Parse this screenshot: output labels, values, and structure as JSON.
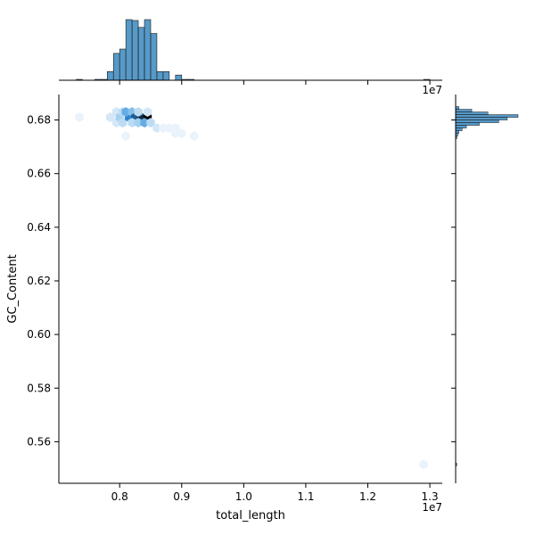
{
  "chart_data": {
    "type": "hexbin",
    "kind": "jointplot",
    "xlabel": "total_length",
    "ylabel": "GC_Content",
    "x_offset_label": "1e7",
    "x_scale_factor": 10000000,
    "xlim": [
      7.02,
      13.2
    ],
    "ylim": [
      0.5445,
      0.6895
    ],
    "x_ticks": [
      0.8,
      0.9,
      1.0,
      1.1,
      1.2,
      1.3
    ],
    "x_tick_labels": [
      "0.8",
      "0.9",
      "1.0",
      "1.1",
      "1.2",
      "1.3"
    ],
    "y_ticks": [
      0.56,
      0.58,
      0.6,
      0.62,
      0.64,
      0.66,
      0.68
    ],
    "y_tick_labels": [
      "0.56",
      "0.58",
      "0.60",
      "0.62",
      "0.64",
      "0.66",
      "0.68"
    ],
    "color": "#1f77b4",
    "hexbins": [
      {
        "x": 7.35,
        "y": 0.681,
        "count": 1
      },
      {
        "x": 7.85,
        "y": 0.681,
        "count": 2
      },
      {
        "x": 7.95,
        "y": 0.679,
        "count": 2
      },
      {
        "x": 7.95,
        "y": 0.683,
        "count": 2
      },
      {
        "x": 8.0,
        "y": 0.681,
        "count": 4
      },
      {
        "x": 8.05,
        "y": 0.683,
        "count": 3
      },
      {
        "x": 8.05,
        "y": 0.679,
        "count": 3
      },
      {
        "x": 8.15,
        "y": 0.681,
        "count": 8
      },
      {
        "x": 8.1,
        "y": 0.683,
        "count": 6
      },
      {
        "x": 8.2,
        "y": 0.683,
        "count": 5
      },
      {
        "x": 8.25,
        "y": 0.681,
        "count": 10
      },
      {
        "x": 8.2,
        "y": 0.679,
        "count": 3
      },
      {
        "x": 8.35,
        "y": 0.681,
        "count": 12
      },
      {
        "x": 8.3,
        "y": 0.683,
        "count": 3
      },
      {
        "x": 8.3,
        "y": 0.679,
        "count": 4
      },
      {
        "x": 8.45,
        "y": 0.681,
        "count": 14
      },
      {
        "x": 8.4,
        "y": 0.679,
        "count": 6
      },
      {
        "x": 8.5,
        "y": 0.679,
        "count": 3
      },
      {
        "x": 8.45,
        "y": 0.683,
        "count": 2
      },
      {
        "x": 8.6,
        "y": 0.677,
        "count": 2
      },
      {
        "x": 8.7,
        "y": 0.677,
        "count": 1
      },
      {
        "x": 8.8,
        "y": 0.677,
        "count": 1
      },
      {
        "x": 8.9,
        "y": 0.677,
        "count": 1
      },
      {
        "x": 8.9,
        "y": 0.675,
        "count": 1
      },
      {
        "x": 9.0,
        "y": 0.675,
        "count": 1
      },
      {
        "x": 9.2,
        "y": 0.674,
        "count": 1
      },
      {
        "x": 8.1,
        "y": 0.674,
        "count": 1
      },
      {
        "x": 12.9,
        "y": 0.5515,
        "count": 1
      }
    ],
    "x_marginal_histogram": {
      "bin_edges": [
        7.3,
        7.4,
        7.5,
        7.6,
        7.7,
        7.8,
        7.9,
        8.0,
        8.1,
        8.2,
        8.3,
        8.4,
        8.5,
        8.6,
        8.7,
        8.8,
        8.9,
        9.0,
        9.1,
        9.2,
        9.3,
        9.4,
        9.5,
        9.6,
        9.7,
        9.8,
        9.9,
        10.0,
        10.1,
        10.2,
        10.3,
        10.4,
        10.5,
        10.6,
        10.7,
        10.8,
        10.9,
        11.0,
        11.1,
        11.2,
        11.3,
        11.4,
        11.5,
        11.6,
        11.7,
        11.8,
        11.9,
        12.0,
        12.1,
        12.2,
        12.3,
        12.4,
        12.5,
        12.6,
        12.7,
        12.8,
        12.9,
        13.0
      ],
      "counts": [
        1,
        0,
        0,
        1,
        1,
        10,
        31,
        36,
        70,
        69,
        61,
        70,
        54,
        10,
        10,
        0,
        6,
        1,
        1,
        0,
        0,
        0,
        0,
        0,
        0,
        0,
        0,
        0,
        0,
        0,
        0,
        0,
        0,
        0,
        0,
        0,
        0,
        0,
        0,
        0,
        0,
        0,
        0,
        0,
        0,
        0,
        0,
        0,
        0,
        0,
        0,
        0,
        0,
        0,
        0,
        0,
        1
      ]
    },
    "y_marginal_histogram": {
      "bin_edges": [
        0.551,
        0.552,
        0.673,
        0.674,
        0.675,
        0.676,
        0.677,
        0.678,
        0.679,
        0.68,
        0.681,
        0.682,
        0.683,
        0.684,
        0.685
      ],
      "counts": [
        1,
        0,
        1,
        2,
        3,
        6,
        10,
        22,
        40,
        48,
        58,
        30,
        15,
        3
      ]
    }
  }
}
